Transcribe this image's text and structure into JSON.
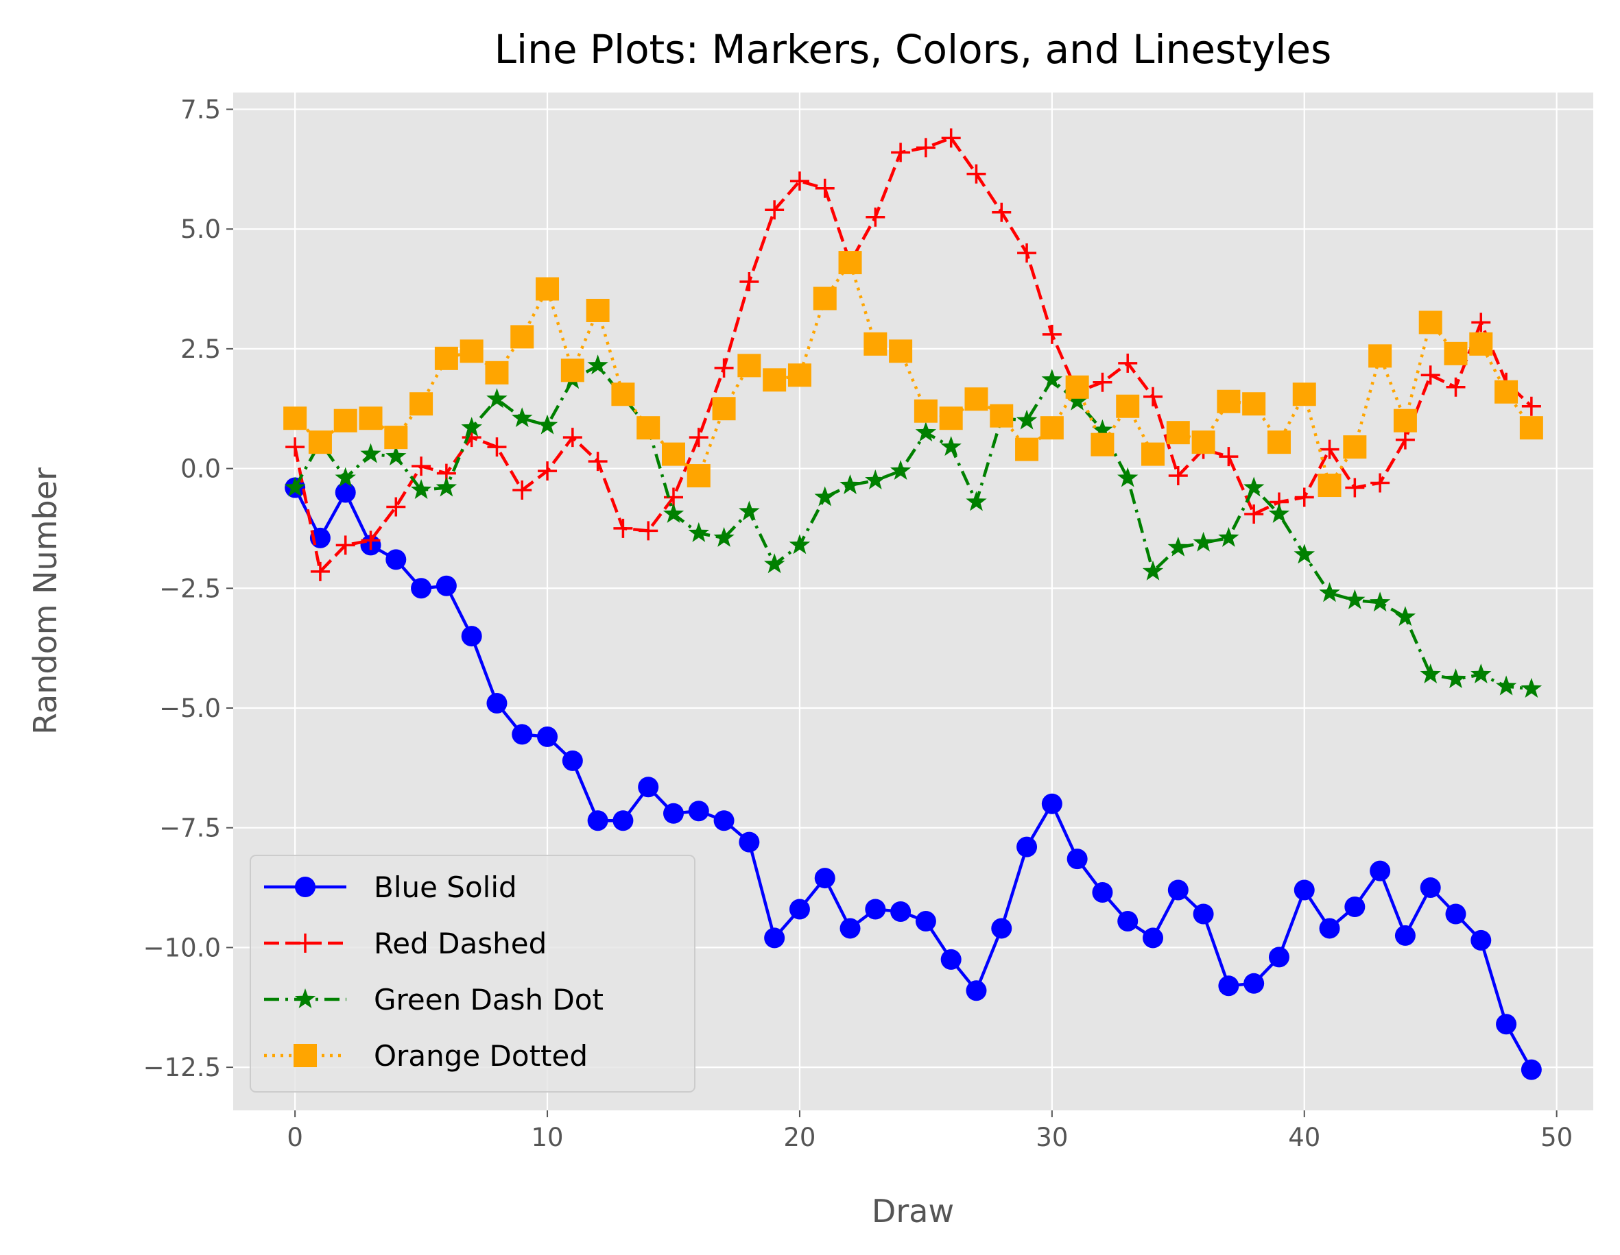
{
  "chart_data": {
    "type": "line",
    "title": "Line Plots: Markers, Colors, and Linestyles",
    "xlabel": "Draw",
    "ylabel": "Random Number",
    "xlim": [
      -2.45,
      51.45
    ],
    "ylim": [
      -13.4,
      7.85
    ],
    "xticks": [
      0,
      10,
      20,
      30,
      40,
      50
    ],
    "xtick_labels": [
      "0",
      "10",
      "20",
      "30",
      "40",
      "50"
    ],
    "yticks": [
      7.5,
      5.0,
      2.5,
      0.0,
      -2.5,
      -5.0,
      -7.5,
      -10.0,
      -12.5
    ],
    "ytick_labels": [
      "7.5",
      "5.0",
      "2.5",
      "0.0",
      "−2.5",
      "−5.0",
      "−7.5",
      "−10.0",
      "−12.5"
    ],
    "grid": true,
    "background": "#e5e5e5",
    "legend_position": "lower-left",
    "x": [
      0,
      1,
      2,
      3,
      4,
      5,
      6,
      7,
      8,
      9,
      10,
      11,
      12,
      13,
      14,
      15,
      16,
      17,
      18,
      19,
      20,
      21,
      22,
      23,
      24,
      25,
      26,
      27,
      28,
      29,
      30,
      31,
      32,
      33,
      34,
      35,
      36,
      37,
      38,
      39,
      40,
      41,
      42,
      43,
      44,
      45,
      46,
      47,
      48,
      49
    ],
    "series": [
      {
        "name": "Blue Solid",
        "color": "#0000ff",
        "linestyle": "solid",
        "marker": "circle",
        "values": [
          -0.4,
          -1.45,
          -0.5,
          -1.6,
          -1.9,
          -2.5,
          -2.45,
          -3.5,
          -4.9,
          -5.55,
          -5.6,
          -6.1,
          -7.35,
          -7.35,
          -6.65,
          -7.2,
          -7.15,
          -7.35,
          -7.8,
          -9.8,
          -9.2,
          -8.55,
          -9.6,
          -9.2,
          -9.25,
          -9.45,
          -10.25,
          -10.9,
          -9.6,
          -7.9,
          -7.0,
          -8.15,
          -8.85,
          -9.45,
          -9.8,
          -8.8,
          -9.3,
          -10.8,
          -10.75,
          -10.2,
          -8.8,
          -9.6,
          -9.15,
          -8.4,
          -9.75,
          -8.75,
          -9.3,
          -9.85,
          -11.6,
          -12.55
        ]
      },
      {
        "name": "Red Dashed",
        "color": "#ff0000",
        "linestyle": "dashed",
        "marker": "plus",
        "values": [
          0.45,
          -2.15,
          -1.6,
          -1.5,
          -0.8,
          0.05,
          -0.1,
          0.65,
          0.45,
          -0.45,
          -0.05,
          0.65,
          0.15,
          -1.25,
          -1.3,
          -0.6,
          0.65,
          2.1,
          3.9,
          5.4,
          6.0,
          5.85,
          4.3,
          5.25,
          6.6,
          6.7,
          6.9,
          6.15,
          5.35,
          4.5,
          2.8,
          1.6,
          1.8,
          2.2,
          1.5,
          -0.15,
          0.4,
          0.25,
          -0.95,
          -0.7,
          -0.6,
          0.4,
          -0.4,
          -0.3,
          0.6,
          1.95,
          1.7,
          3.05,
          1.8,
          1.3
        ]
      },
      {
        "name": "Green Dash Dot",
        "color": "#008000",
        "linestyle": "dashdot",
        "marker": "star",
        "values": [
          -0.4,
          0.55,
          -0.2,
          0.3,
          0.25,
          -0.45,
          -0.4,
          0.85,
          1.45,
          1.05,
          0.9,
          1.85,
          2.15,
          1.5,
          0.85,
          -0.95,
          -1.35,
          -1.45,
          -0.9,
          -2.0,
          -1.6,
          -0.6,
          -0.35,
          -0.25,
          -0.05,
          0.75,
          0.45,
          -0.7,
          1.05,
          1.0,
          1.85,
          1.4,
          0.8,
          -0.2,
          -2.15,
          -1.65,
          -1.55,
          -1.45,
          -0.4,
          -0.95,
          -1.8,
          -2.6,
          -2.75,
          -2.8,
          -3.1,
          -4.3,
          -4.4,
          -4.3,
          -4.55,
          -4.6
        ]
      },
      {
        "name": "Orange Dotted",
        "color": "#ffa500",
        "linestyle": "dotted",
        "marker": "square",
        "values": [
          1.05,
          0.55,
          1.0,
          1.05,
          0.65,
          1.35,
          2.3,
          2.45,
          2.0,
          2.75,
          3.75,
          2.05,
          3.3,
          1.55,
          0.85,
          0.3,
          -0.15,
          1.25,
          2.15,
          1.85,
          1.95,
          3.55,
          4.3,
          2.6,
          2.45,
          1.2,
          1.05,
          1.45,
          1.1,
          0.4,
          0.85,
          1.7,
          0.5,
          1.3,
          0.3,
          0.75,
          0.55,
          1.4,
          1.35,
          0.55,
          1.55,
          -0.35,
          0.45,
          2.35,
          1.0,
          3.05,
          2.4,
          2.6,
          1.6,
          0.85
        ]
      }
    ]
  }
}
